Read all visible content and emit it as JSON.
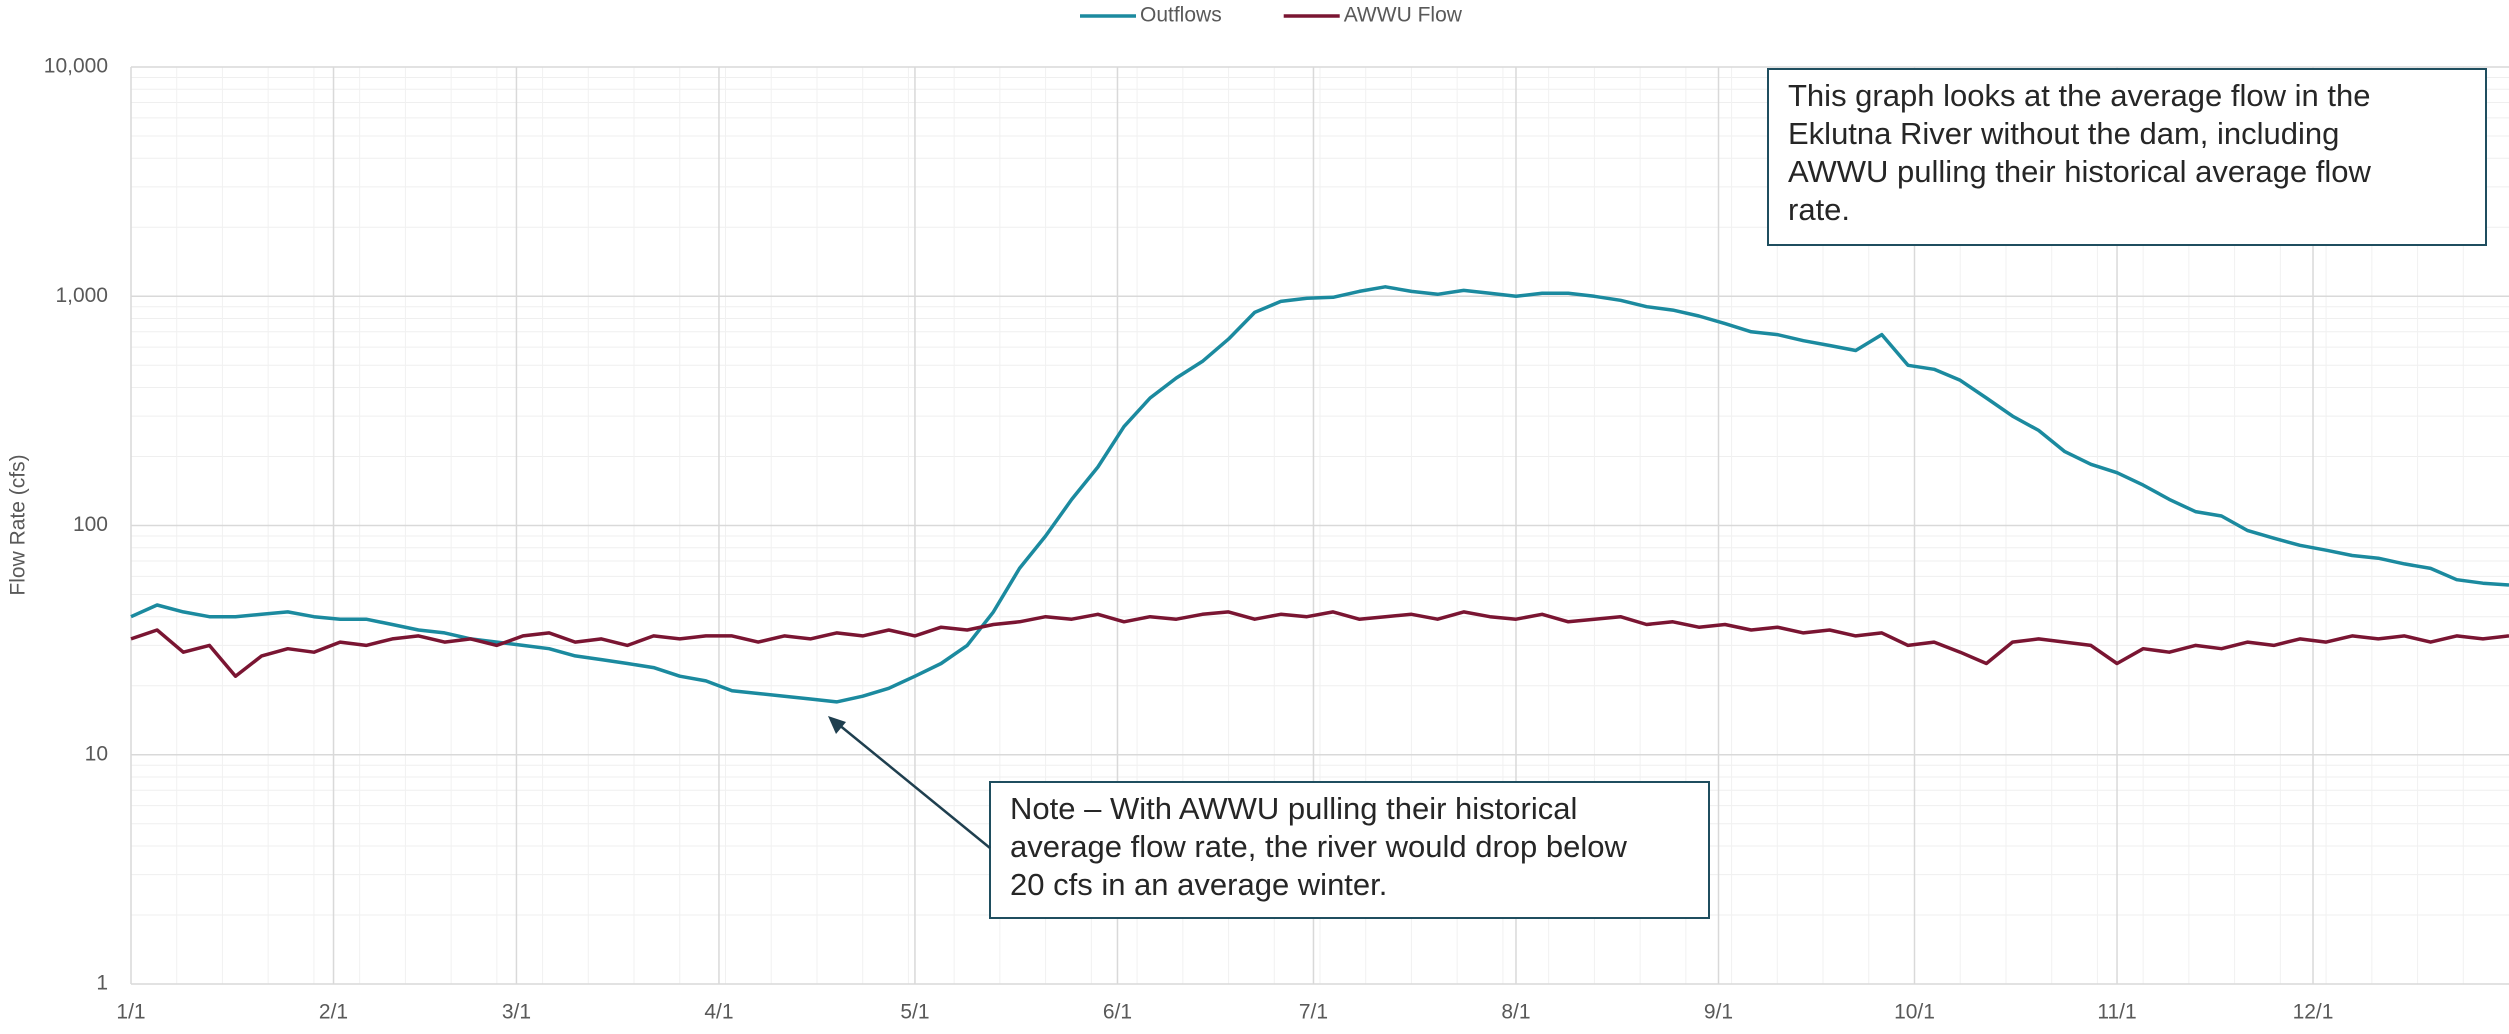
{
  "chart_data": {
    "type": "line",
    "y_label": "Flow Rate (cfs)",
    "log_y": true,
    "grid": true,
    "legend": "top",
    "xlim": [
      1,
      365
    ],
    "xticks": [
      {
        "value": 1,
        "label": "1/1"
      },
      {
        "value": 32,
        "label": "2/1"
      },
      {
        "value": 60,
        "label": "3/1"
      },
      {
        "value": 91,
        "label": "4/1"
      },
      {
        "value": 121,
        "label": "5/1"
      },
      {
        "value": 152,
        "label": "6/1"
      },
      {
        "value": 182,
        "label": "7/1"
      },
      {
        "value": 213,
        "label": "8/1"
      },
      {
        "value": 244,
        "label": "9/1"
      },
      {
        "value": 274,
        "label": "10/1"
      },
      {
        "value": 305,
        "label": "11/1"
      },
      {
        "value": 335,
        "label": "12/1"
      }
    ],
    "ylim": [
      1,
      10000
    ],
    "yticks": [
      1,
      10,
      100,
      {
        "value": 1000,
        "label": "1,000"
      },
      {
        "value": 10000,
        "label": "10,000"
      }
    ],
    "x": [
      1,
      5,
      9,
      13,
      17,
      21,
      25,
      29,
      33,
      37,
      41,
      45,
      49,
      53,
      57,
      61,
      65,
      69,
      73,
      77,
      81,
      85,
      89,
      93,
      97,
      101,
      105,
      109,
      113,
      117,
      121,
      125,
      129,
      133,
      137,
      141,
      145,
      149,
      153,
      157,
      161,
      165,
      169,
      173,
      177,
      181,
      185,
      189,
      193,
      197,
      201,
      205,
      209,
      213,
      217,
      221,
      225,
      229,
      233,
      237,
      241,
      245,
      249,
      253,
      257,
      261,
      265,
      269,
      273,
      277,
      281,
      285,
      289,
      293,
      297,
      301,
      305,
      309,
      313,
      317,
      321,
      325,
      329,
      333,
      337,
      341,
      345,
      349,
      353,
      357,
      361,
      365
    ],
    "series": [
      {
        "name": "Outflows",
        "color": "#1b8a9f",
        "values": [
          40,
          45,
          42,
          40,
          40,
          41,
          42,
          40,
          39,
          39,
          37,
          35,
          34,
          32,
          31,
          30,
          29,
          27,
          26,
          25,
          24,
          22,
          21,
          19,
          18.5,
          18,
          17.5,
          17,
          18,
          19.5,
          22,
          25,
          30,
          42,
          65,
          90,
          130,
          180,
          270,
          360,
          440,
          520,
          650,
          850,
          950,
          980,
          990,
          1050,
          1100,
          1050,
          1020,
          1060,
          1030,
          1000,
          1030,
          1030,
          1000,
          960,
          900,
          870,
          820,
          760,
          700,
          680,
          640,
          610,
          580,
          680,
          500,
          480,
          430,
          360,
          300,
          260,
          210,
          185,
          170,
          150,
          130,
          115,
          110,
          95,
          88,
          82,
          78,
          74,
          72,
          68,
          65,
          58,
          56,
          55
        ]
      },
      {
        "name": "AWWU Flow",
        "color": "#7a1532",
        "values": [
          32,
          35,
          28,
          30,
          22,
          27,
          29,
          28,
          31,
          30,
          32,
          33,
          31,
          32,
          30,
          33,
          34,
          31,
          32,
          30,
          33,
          32,
          33,
          33,
          31,
          33,
          32,
          34,
          33,
          35,
          33,
          36,
          35,
          37,
          38,
          40,
          39,
          41,
          38,
          40,
          39,
          41,
          42,
          39,
          41,
          40,
          42,
          39,
          40,
          41,
          39,
          42,
          40,
          39,
          41,
          38,
          39,
          40,
          37,
          38,
          36,
          37,
          35,
          36,
          34,
          35,
          33,
          34,
          30,
          31,
          28,
          25,
          31,
          32,
          31,
          30,
          25,
          29,
          28,
          30,
          29,
          31,
          30,
          32,
          31,
          33,
          32,
          33,
          31,
          33,
          32,
          33
        ]
      }
    ],
    "annotations": [
      {
        "lines": [
          "This graph looks at the average flow in the",
          "Eklutna River without the dam, including",
          "AWWU pulling their historical average flow",
          "rate."
        ]
      },
      {
        "lines": [
          "Note – With AWWU pulling their historical",
          "average flow rate, the river would drop below",
          "20 cfs in an average winter."
        ]
      }
    ]
  }
}
